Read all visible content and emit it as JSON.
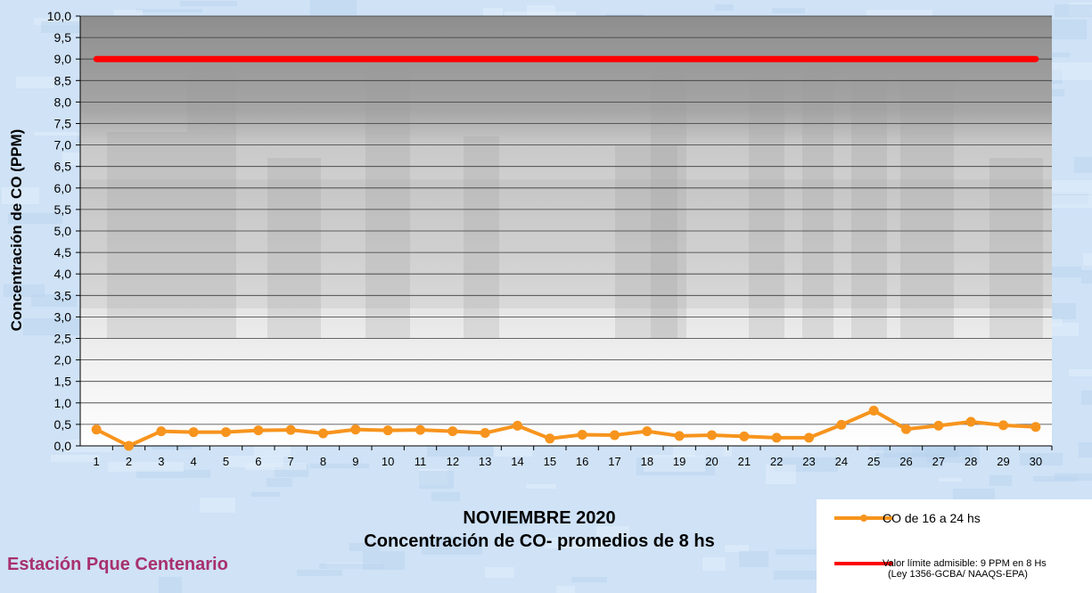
{
  "chart_data": {
    "type": "line",
    "title": "NOVIEMBRE 2020",
    "subtitle": "Concentración de CO- promedios de 8 hs",
    "ylabel": "Concentración de CO (PPM)",
    "xlabel": "",
    "ylim": [
      0,
      10
    ],
    "y_ticks": [
      "0,0",
      "0,5",
      "1,0",
      "1,5",
      "2,0",
      "2,5",
      "3,0",
      "3,5",
      "4,0",
      "4,5",
      "5,0",
      "5,5",
      "6,0",
      "6,5",
      "7,0",
      "7,5",
      "8,0",
      "8,5",
      "9,0",
      "9,5",
      "10,0"
    ],
    "categories": [
      "1",
      "2",
      "3",
      "4",
      "5",
      "6",
      "7",
      "8",
      "9",
      "10",
      "11",
      "12",
      "13",
      "14",
      "15",
      "16",
      "17",
      "18",
      "19",
      "20",
      "21",
      "22",
      "23",
      "24",
      "25",
      "26",
      "27",
      "28",
      "29",
      "30"
    ],
    "grid": true,
    "legend_position": "bottom-right",
    "series": [
      {
        "name": "CO de 16 a 24 hs",
        "color": "#f7941d",
        "marker": "circle",
        "values": [
          0.38,
          0.0,
          0.34,
          0.32,
          0.32,
          0.36,
          0.37,
          0.29,
          0.38,
          0.36,
          0.37,
          0.34,
          0.3,
          0.47,
          0.17,
          0.26,
          0.25,
          0.34,
          0.23,
          0.25,
          0.22,
          0.19,
          0.19,
          0.49,
          0.82,
          0.39,
          0.47,
          0.56,
          0.48,
          0.44
        ]
      },
      {
        "name": "Valor límite admisible: 9 PPM en 8 Hs",
        "name_line2": "(Ley 1356-GCBA/ NAAQS-EPA)",
        "color": "#ff0000",
        "marker": "none",
        "values": [
          9,
          9,
          9,
          9,
          9,
          9,
          9,
          9,
          9,
          9,
          9,
          9,
          9,
          9,
          9,
          9,
          9,
          9,
          9,
          9,
          9,
          9,
          9,
          9,
          9,
          9,
          9,
          9,
          9,
          9
        ]
      }
    ]
  },
  "station": "Estación Pque Centenario",
  "colors": {
    "background": "#cfe2f6",
    "plot_dark": "#8e8e8e",
    "plot_light": "#ffffff",
    "station_text": "#a8306e"
  }
}
